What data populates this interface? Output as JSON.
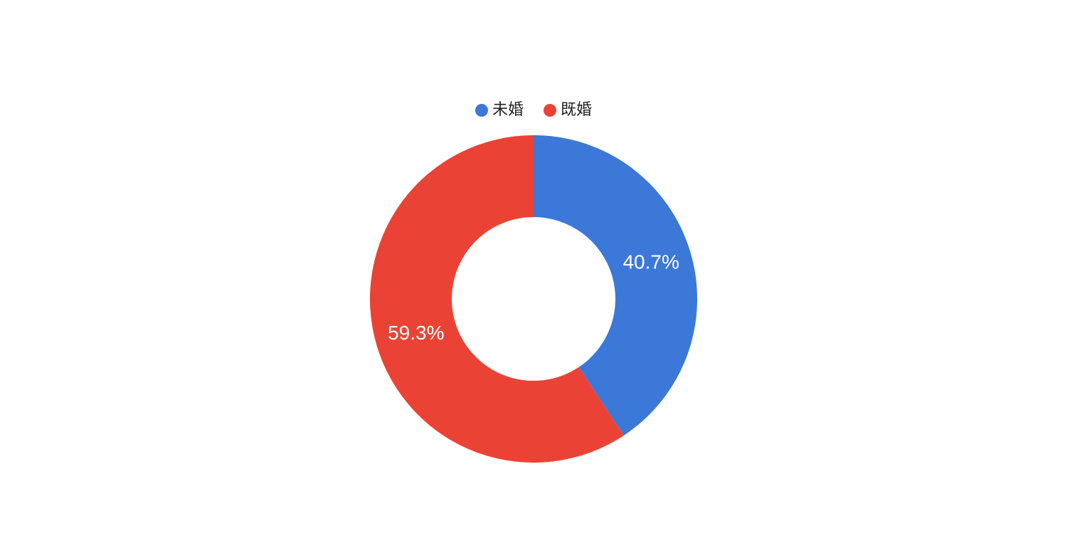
{
  "chart_data": {
    "type": "donut",
    "categories": [
      "未婚",
      "既婚"
    ],
    "values": [
      40.7,
      59.3
    ],
    "value_labels": [
      "40.7%",
      "59.3%"
    ],
    "colors": [
      "#3c78d8",
      "#ea4335"
    ],
    "legend": "top"
  }
}
